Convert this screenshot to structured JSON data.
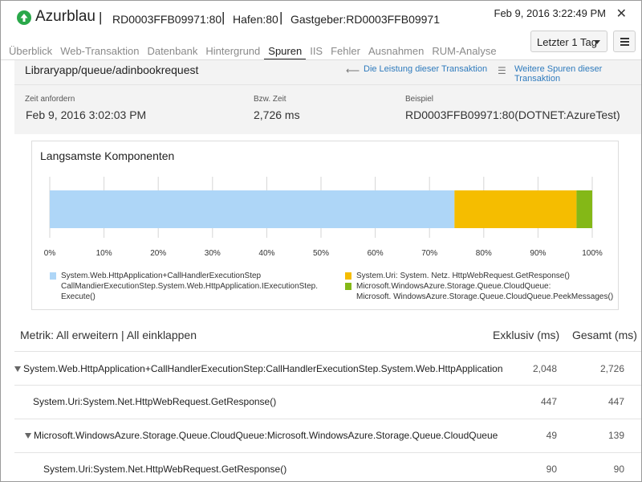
{
  "header": {
    "app_name": "Azurblau",
    "host_id": "RD0003FFB09971:80",
    "port": "Hafen:80",
    "host": "Gastgeber:RD0003FFB09971",
    "timestamp": "Feb 9, 2016 3:22:49 PM",
    "close_glyph": "✕",
    "status_color": "#2aa84a"
  },
  "tabs": [
    {
      "label": "Überblick"
    },
    {
      "label": "Web-Transaktion"
    },
    {
      "label": "Datenbank"
    },
    {
      "label": "Hintergrund"
    },
    {
      "label": "Spuren",
      "active": true
    },
    {
      "label": "IIS"
    },
    {
      "label": "Fehler"
    },
    {
      "label": "Ausnahmen"
    },
    {
      "label": "RUM-Analyse"
    }
  ],
  "controls": {
    "time_range": "Letzter 1 Tag",
    "menu_icon": "hamburger-menu-icon"
  },
  "transaction": {
    "name": "Libraryapp/queue/adinbookrequest",
    "link_performance": "Die Leistung dieser Transaktion",
    "link_traces": "Weitere Spuren dieser Transaktion",
    "requested_label": "Zeit anfordern",
    "requested_value": "Feb 9, 2016 3:02:03 PM",
    "time_label": "Bzw. Zeit",
    "time_value": "2,726 ms",
    "sample_label": "Beispiel",
    "sample_value": "RD0003FFB09971:80(DOTNET:AzureTest)"
  },
  "chart_data": {
    "type": "bar",
    "title": "Langsamste Komponenten",
    "orientation": "horizontal-stacked",
    "xlim": [
      0,
      100
    ],
    "ticks": [
      "0%",
      "10%",
      "20%",
      "30%",
      "40%",
      "50%",
      "60%",
      "70%",
      "80%",
      "90%",
      "100%"
    ],
    "grid": true,
    "legend_position": "bottom",
    "series": [
      {
        "name": "System.Web.HttpApplication+CallHandlerExecutionStep CallMandierExecutionStep.System.Web.HttpApplication.IExecutionStep. Execute()",
        "value": 74.6,
        "color": "#aed6f7"
      },
      {
        "name": "System.Uri: System. Netz. HttpWebRequest.GetResponse()",
        "value": 22.5,
        "color": "#f5bd00"
      },
      {
        "name": "Microsoft.WindowsAzure.Storage.Queue.CloudQueue: Microsoft. WindowsAzure.Storage.Queue.CloudQueue.PeekMessages()",
        "value": 2.9,
        "color": "#84b817"
      }
    ]
  },
  "legend": [
    {
      "line1": "System.Web.HttpApplication+CallHandlerExecutionStep",
      "line2": "CallMandierExecutionStep.System.Web.HttpApplication.IExecutionStep.",
      "line3": "Execute()"
    },
    {
      "line1": "System.Uri: System. Netz. HttpWebRequest.GetResponse()"
    },
    {
      "line1": "Microsoft.WindowsAzure.Storage.Queue.CloudQueue:",
      "line2": "Microsoft. WindowsAzure.Storage.Queue.CloudQueue.PeekMessages()"
    }
  ],
  "metrics": {
    "label": "Metrik:",
    "expand_all": "All erweitern",
    "separator": "|",
    "collapse_all": "All einklappen",
    "col_exclusive": "Exklusiv (ms)",
    "col_total": "Gesamt (ms)",
    "rows": [
      {
        "name": "System.Web.HttpApplication+CallHandlerExecutionStep:CallHandlerExecutionStep.System.Web.HttpApplication",
        "exclusive": "2,048",
        "total": "2,726",
        "expandable": true
      },
      {
        "name": "System.Uri:System.Net.HttpWebRequest.GetResponse()",
        "exclusive": "447",
        "total": "447",
        "expandable": false
      },
      {
        "name": "Microsoft.WindowsAzure.Storage.Queue.CloudQueue:Microsoft.WindowsAzure.Storage.Queue.CloudQueue",
        "exclusive": "49",
        "total": "139",
        "expandable": true
      },
      {
        "name": "System.Uri:System.Net.HttpWebRequest.GetResponse()",
        "exclusive": "90",
        "total": "90",
        "expandable": false
      }
    ]
  }
}
